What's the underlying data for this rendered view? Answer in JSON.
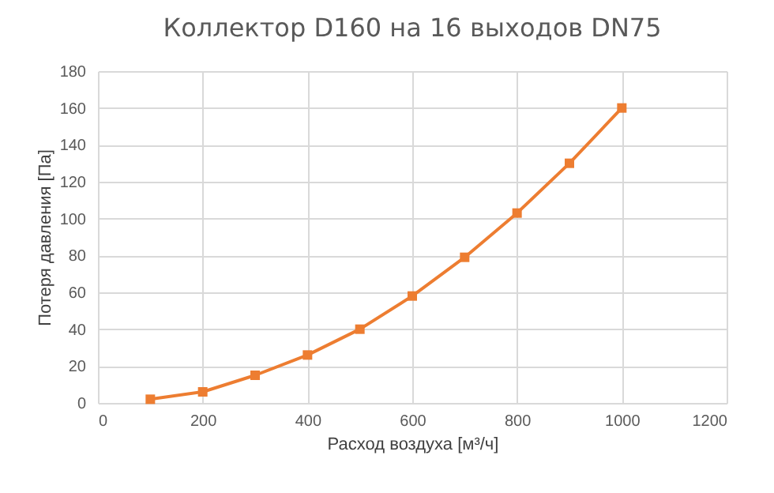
{
  "chart_data": {
    "type": "line",
    "title": "Коллектор D160 на 16 выходов DN75",
    "xlabel": "Расход воздуха [м³/ч]",
    "ylabel": "Потеря давления [Па]",
    "x": [
      100,
      200,
      300,
      400,
      500,
      600,
      700,
      800,
      900,
      1000
    ],
    "series": [
      {
        "color": "#ed7d31",
        "values": [
          2,
          6,
          15,
          26,
          40,
          58,
          79,
          103,
          130,
          160
        ]
      }
    ],
    "xlim": [
      0,
      1200
    ],
    "xticks": [
      0,
      200,
      400,
      600,
      800,
      1000,
      1200
    ],
    "ylim": [
      0,
      180
    ],
    "yticks": [
      0,
      20,
      40,
      60,
      80,
      100,
      120,
      140,
      160,
      180
    ],
    "grid": true,
    "marker": "square",
    "line_style": "solid"
  }
}
